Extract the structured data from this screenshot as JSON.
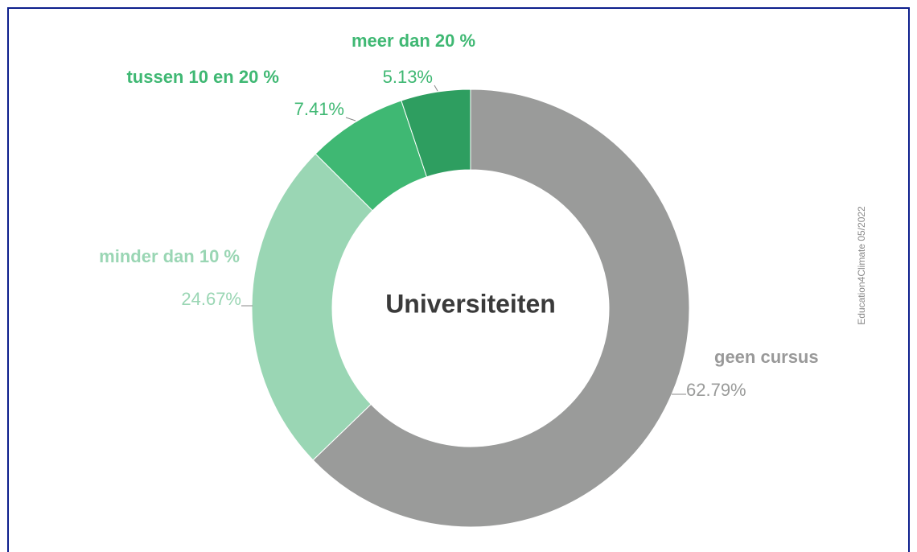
{
  "chart_data": {
    "type": "donut",
    "title": "Universiteiten",
    "categories": [
      "geen cursus",
      "minder dan 10 %",
      "tussen 10 en 20 %",
      "meer dan 20 %"
    ],
    "values": [
      62.79,
      24.67,
      7.41,
      5.13
    ],
    "value_labels": [
      "62.79%",
      "24.67%",
      "7.41%",
      "5.13%"
    ],
    "colors": [
      "#9a9b9a",
      "#9ad6b4",
      "#3fb873",
      "#2e9e60"
    ],
    "annotation": "Education4Climate 05/2022"
  }
}
